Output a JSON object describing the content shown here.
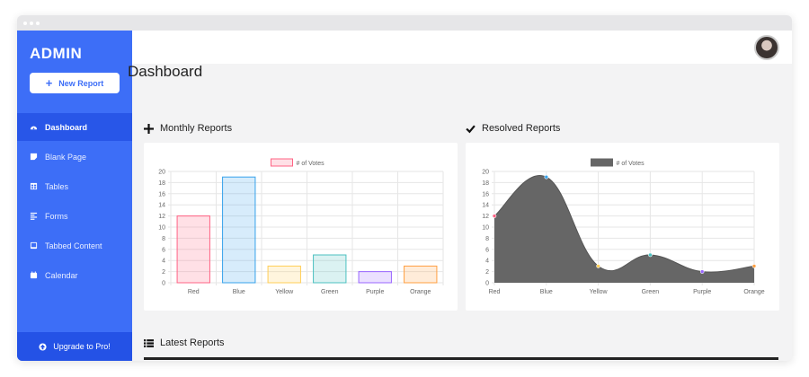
{
  "sidebar": {
    "brand": "ADMIN",
    "new_report_label": "New Report",
    "items": [
      {
        "label": "Dashboard",
        "active": true,
        "icon": "gauge-icon"
      },
      {
        "label": "Blank Page",
        "active": false,
        "icon": "sticky-note-icon"
      },
      {
        "label": "Tables",
        "active": false,
        "icon": "table-icon"
      },
      {
        "label": "Forms",
        "active": false,
        "icon": "align-left-icon"
      },
      {
        "label": "Tabbed Content",
        "active": false,
        "icon": "tablet-icon"
      },
      {
        "label": "Calendar",
        "active": false,
        "icon": "calendar-icon"
      }
    ],
    "upgrade_label": "Upgrade to Pro!"
  },
  "main": {
    "title": "Dashboard",
    "monthly_title": "Monthly Reports",
    "resolved_title": "Resolved Reports",
    "latest_title": "Latest Reports"
  },
  "colors": {
    "sidebar": "#3d6ef7",
    "active": "#2856e8",
    "area_fill": "#666666"
  },
  "chart_data": [
    {
      "type": "bar",
      "categories": [
        "Red",
        "Blue",
        "Yellow",
        "Green",
        "Purple",
        "Orange"
      ],
      "series": [
        {
          "name": "# of Votes",
          "values": [
            12,
            19,
            3,
            5,
            2,
            3
          ]
        }
      ],
      "ylim": [
        0,
        20
      ],
      "yticks": [
        0,
        2,
        4,
        6,
        8,
        10,
        12,
        14,
        16,
        18,
        20
      ],
      "legend": "top",
      "colors": [
        "#ff6384",
        "#36a2eb",
        "#ffce56",
        "#4bc0c0",
        "#9966ff",
        "#ff9f40"
      ],
      "grid": true
    },
    {
      "type": "area",
      "categories": [
        "Red",
        "Blue",
        "Yellow",
        "Green",
        "Purple",
        "Orange"
      ],
      "series": [
        {
          "name": "# of Votes",
          "values": [
            12,
            19,
            3,
            5,
            2,
            3
          ]
        }
      ],
      "ylim": [
        0,
        20
      ],
      "yticks": [
        0,
        2,
        4,
        6,
        8,
        10,
        12,
        14,
        16,
        18,
        20
      ],
      "legend": "top",
      "point_colors": [
        "#ff6384",
        "#36a2eb",
        "#ffce56",
        "#4bc0c0",
        "#9966ff",
        "#ff9f40"
      ],
      "grid": true
    }
  ]
}
